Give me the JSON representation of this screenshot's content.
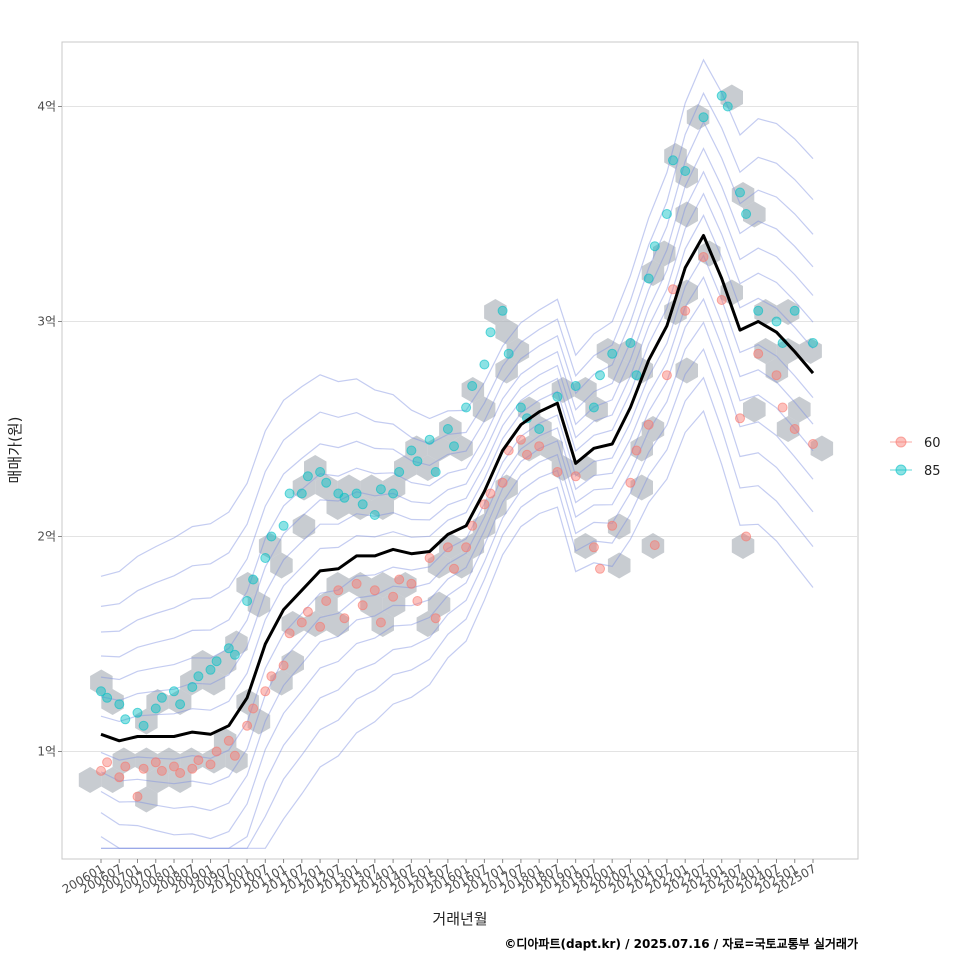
{
  "chart_data": {
    "type": "scatter",
    "xlabel": "거래년월",
    "ylabel": "매매가(원)",
    "caption": "©디아파트(dapt.kr) / 2025.07.16 / 자료=국토교통부 실거래가",
    "ylim": [
      0.5,
      4.3
    ],
    "y_ticks": [
      {
        "value": 1,
        "label": "1억"
      },
      {
        "value": 2,
        "label": "2억"
      },
      {
        "value": 3,
        "label": "3억"
      },
      {
        "value": 4,
        "label": "4억"
      }
    ],
    "x_ticks": [
      "200601",
      "200607",
      "200701",
      "200707",
      "200801",
      "200807",
      "200901",
      "200907",
      "201001",
      "201007",
      "201101",
      "201107",
      "201201",
      "201207",
      "201301",
      "201307",
      "201401",
      "201407",
      "201501",
      "201507",
      "201601",
      "201607",
      "201701",
      "201707",
      "201801",
      "201807",
      "201901",
      "201907",
      "202001",
      "202007",
      "202101",
      "202107",
      "202201",
      "202207",
      "202301",
      "202307",
      "202401",
      "202407",
      "202501",
      "202507"
    ],
    "grid": true,
    "legend": {
      "position": "right",
      "entries": [
        {
          "label": "60",
          "color": "#F8766D"
        },
        {
          "label": "85",
          "color": "#00BFC4"
        }
      ]
    },
    "trend_line": {
      "color": "#000000",
      "points": [
        [
          "200601",
          1.08
        ],
        [
          "200607",
          1.05
        ],
        [
          "200701",
          1.07
        ],
        [
          "200707",
          1.07
        ],
        [
          "200801",
          1.07
        ],
        [
          "200807",
          1.09
        ],
        [
          "200901",
          1.08
        ],
        [
          "200907",
          1.12
        ],
        [
          "201001",
          1.25
        ],
        [
          "201007",
          1.5
        ],
        [
          "201101",
          1.66
        ],
        [
          "201107",
          1.75
        ],
        [
          "201201",
          1.84
        ],
        [
          "201207",
          1.85
        ],
        [
          "201301",
          1.91
        ],
        [
          "201307",
          1.91
        ],
        [
          "201401",
          1.94
        ],
        [
          "201407",
          1.92
        ],
        [
          "201501",
          1.93
        ],
        [
          "201507",
          2.01
        ],
        [
          "201601",
          2.05
        ],
        [
          "201607",
          2.21
        ],
        [
          "201701",
          2.4
        ],
        [
          "201707",
          2.52
        ],
        [
          "201801",
          2.58
        ],
        [
          "201807",
          2.62
        ],
        [
          "201901",
          2.34
        ],
        [
          "201907",
          2.41
        ],
        [
          "202001",
          2.43
        ],
        [
          "202007",
          2.6
        ],
        [
          "202101",
          2.82
        ],
        [
          "202107",
          2.98
        ],
        [
          "202201",
          3.25
        ],
        [
          "202207",
          3.4
        ],
        [
          "202301",
          3.2
        ],
        [
          "202307",
          2.96
        ],
        [
          "202401",
          3.0
        ],
        [
          "202407",
          2.95
        ],
        [
          "202501",
          2.86
        ],
        [
          "202507",
          2.76
        ]
      ]
    },
    "series": [
      {
        "name": "60",
        "points": [
          [
            "200601",
            0.91
          ],
          [
            "200603",
            0.95
          ],
          [
            "200607",
            0.88
          ],
          [
            "200609",
            0.93
          ],
          [
            "200701",
            0.79
          ],
          [
            "200703",
            0.92
          ],
          [
            "200707",
            0.95
          ],
          [
            "200709",
            0.91
          ],
          [
            "200801",
            0.93
          ],
          [
            "200803",
            0.9
          ],
          [
            "200807",
            0.92
          ],
          [
            "200809",
            0.96
          ],
          [
            "200901",
            0.94
          ],
          [
            "200903",
            1.0
          ],
          [
            "200907",
            1.05
          ],
          [
            "200909",
            0.98
          ],
          [
            "201001",
            1.12
          ],
          [
            "201003",
            1.2
          ],
          [
            "201007",
            1.28
          ],
          [
            "201009",
            1.35
          ],
          [
            "201101",
            1.4
          ],
          [
            "201103",
            1.55
          ],
          [
            "201107",
            1.6
          ],
          [
            "201109",
            1.65
          ],
          [
            "201201",
            1.58
          ],
          [
            "201203",
            1.7
          ],
          [
            "201207",
            1.75
          ],
          [
            "201209",
            1.62
          ],
          [
            "201301",
            1.78
          ],
          [
            "201303",
            1.68
          ],
          [
            "201307",
            1.75
          ],
          [
            "201309",
            1.6
          ],
          [
            "201401",
            1.72
          ],
          [
            "201403",
            1.8
          ],
          [
            "201407",
            1.78
          ],
          [
            "201409",
            1.7
          ],
          [
            "201501",
            1.9
          ],
          [
            "201503",
            1.62
          ],
          [
            "201507",
            1.95
          ],
          [
            "201509",
            1.85
          ],
          [
            "201601",
            1.95
          ],
          [
            "201603",
            2.05
          ],
          [
            "201607",
            2.15
          ],
          [
            "201609",
            2.2
          ],
          [
            "201701",
            2.25
          ],
          [
            "201703",
            2.4
          ],
          [
            "201707",
            2.45
          ],
          [
            "201709",
            2.38
          ],
          [
            "201801",
            2.42
          ],
          [
            "201807",
            2.3
          ],
          [
            "201901",
            2.28
          ],
          [
            "201907",
            1.95
          ],
          [
            "201909",
            1.85
          ],
          [
            "202001",
            2.05
          ],
          [
            "202007",
            2.25
          ],
          [
            "202009",
            2.4
          ],
          [
            "202101",
            2.52
          ],
          [
            "202103",
            1.96
          ],
          [
            "202107",
            2.75
          ],
          [
            "202109",
            3.15
          ],
          [
            "202201",
            3.05
          ],
          [
            "202207",
            3.3
          ],
          [
            "202301",
            3.1
          ],
          [
            "202307",
            2.55
          ],
          [
            "202309",
            2.0
          ],
          [
            "202401",
            2.85
          ],
          [
            "202407",
            2.75
          ],
          [
            "202409",
            2.6
          ],
          [
            "202501",
            2.5
          ],
          [
            "202507",
            2.43
          ]
        ]
      },
      {
        "name": "85",
        "points": [
          [
            "200601",
            1.28
          ],
          [
            "200603",
            1.25
          ],
          [
            "200607",
            1.22
          ],
          [
            "200609",
            1.15
          ],
          [
            "200701",
            1.18
          ],
          [
            "200703",
            1.12
          ],
          [
            "200707",
            1.2
          ],
          [
            "200709",
            1.25
          ],
          [
            "200801",
            1.28
          ],
          [
            "200803",
            1.22
          ],
          [
            "200807",
            1.3
          ],
          [
            "200809",
            1.35
          ],
          [
            "200901",
            1.38
          ],
          [
            "200903",
            1.42
          ],
          [
            "200907",
            1.48
          ],
          [
            "200909",
            1.45
          ],
          [
            "201001",
            1.7
          ],
          [
            "201003",
            1.8
          ],
          [
            "201007",
            1.9
          ],
          [
            "201009",
            2.0
          ],
          [
            "201101",
            2.05
          ],
          [
            "201103",
            2.2
          ],
          [
            "201107",
            2.2
          ],
          [
            "201109",
            2.28
          ],
          [
            "201201",
            2.3
          ],
          [
            "201203",
            2.25
          ],
          [
            "201207",
            2.2
          ],
          [
            "201209",
            2.18
          ],
          [
            "201301",
            2.2
          ],
          [
            "201303",
            2.15
          ],
          [
            "201307",
            2.1
          ],
          [
            "201309",
            2.22
          ],
          [
            "201401",
            2.2
          ],
          [
            "201403",
            2.3
          ],
          [
            "201407",
            2.4
          ],
          [
            "201409",
            2.35
          ],
          [
            "201501",
            2.45
          ],
          [
            "201503",
            2.3
          ],
          [
            "201507",
            2.5
          ],
          [
            "201509",
            2.42
          ],
          [
            "201601",
            2.6
          ],
          [
            "201603",
            2.7
          ],
          [
            "201607",
            2.8
          ],
          [
            "201609",
            2.95
          ],
          [
            "201701",
            3.05
          ],
          [
            "201703",
            2.85
          ],
          [
            "201707",
            2.6
          ],
          [
            "201709",
            2.55
          ],
          [
            "201801",
            2.5
          ],
          [
            "201807",
            2.65
          ],
          [
            "201901",
            2.7
          ],
          [
            "201907",
            2.6
          ],
          [
            "201909",
            2.75
          ],
          [
            "202001",
            2.85
          ],
          [
            "202007",
            2.9
          ],
          [
            "202009",
            2.75
          ],
          [
            "202101",
            3.2
          ],
          [
            "202103",
            3.35
          ],
          [
            "202107",
            3.5
          ],
          [
            "202109",
            3.75
          ],
          [
            "202201",
            3.7
          ],
          [
            "202207",
            3.95
          ],
          [
            "202301",
            4.05
          ],
          [
            "202303",
            4.0
          ],
          [
            "202307",
            3.6
          ],
          [
            "202309",
            3.5
          ],
          [
            "202401",
            3.05
          ],
          [
            "202407",
            3.0
          ],
          [
            "202409",
            2.9
          ],
          [
            "202501",
            3.05
          ],
          [
            "202507",
            2.9
          ]
        ]
      }
    ]
  }
}
